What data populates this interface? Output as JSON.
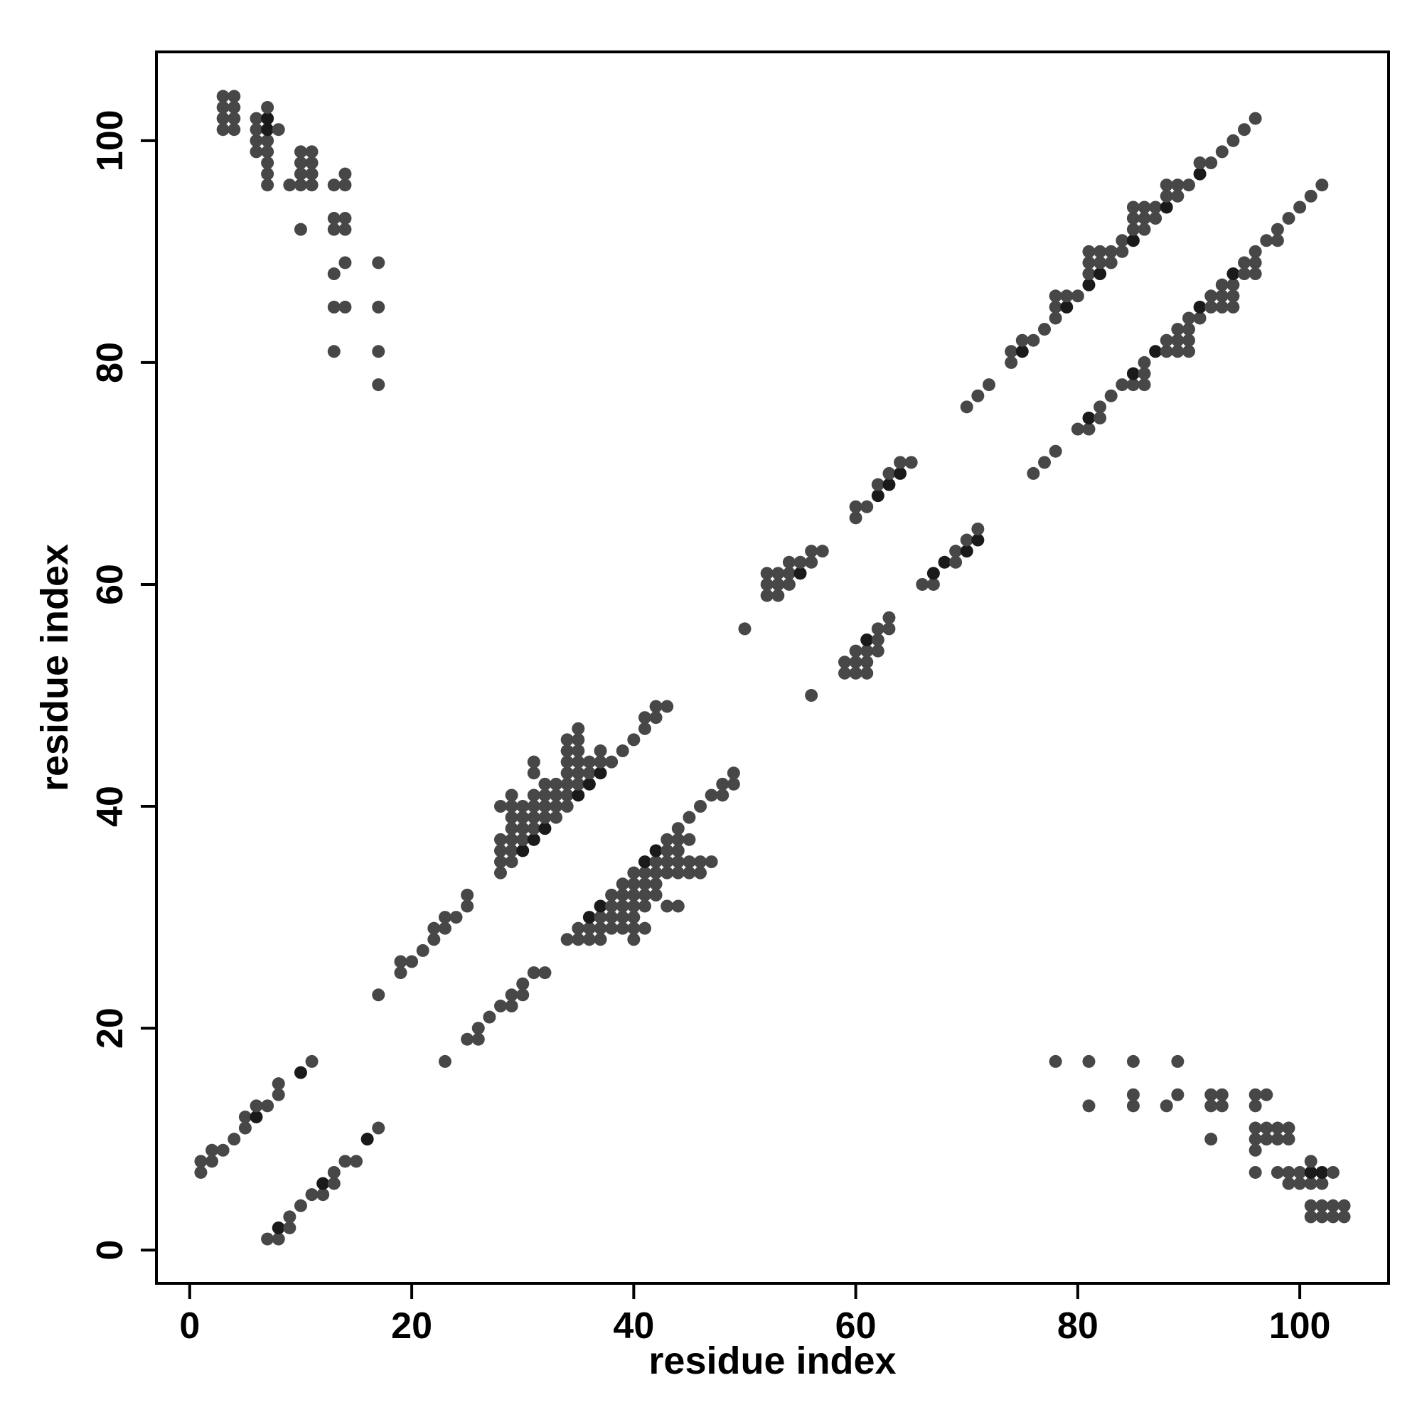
{
  "chart_data": {
    "type": "scatter",
    "title": "",
    "xlabel": "residue index",
    "ylabel": "residue index",
    "xlim": [
      -3,
      108
    ],
    "ylim": [
      -3,
      108
    ],
    "xticks": [
      0,
      20,
      40,
      60,
      80,
      100
    ],
    "yticks": [
      0,
      20,
      40,
      60,
      80,
      100
    ],
    "grid": false,
    "legend": "none",
    "point_color": "#474747",
    "dark_point_color": "#1a1a1a",
    "points": [
      [
        1,
        7
      ],
      [
        1,
        8
      ],
      [
        2,
        8
      ],
      [
        2,
        9
      ],
      [
        3,
        9
      ],
      [
        4,
        10
      ],
      [
        5,
        11
      ],
      [
        5,
        12
      ],
      [
        6,
        12
      ],
      [
        6,
        13
      ],
      [
        7,
        13
      ],
      [
        8,
        14
      ],
      [
        8,
        15
      ],
      [
        10,
        16
      ],
      [
        11,
        17
      ],
      [
        7,
        1
      ],
      [
        8,
        1
      ],
      [
        8,
        2
      ],
      [
        9,
        2
      ],
      [
        9,
        3
      ],
      [
        10,
        4
      ],
      [
        11,
        5
      ],
      [
        12,
        5
      ],
      [
        12,
        6
      ],
      [
        13,
        6
      ],
      [
        13,
        7
      ],
      [
        14,
        8
      ],
      [
        15,
        8
      ],
      [
        16,
        10
      ],
      [
        17,
        11
      ],
      [
        17,
        23
      ],
      [
        19,
        25
      ],
      [
        19,
        26
      ],
      [
        20,
        26
      ],
      [
        21,
        27
      ],
      [
        22,
        28
      ],
      [
        22,
        29
      ],
      [
        23,
        29
      ],
      [
        23,
        30
      ],
      [
        24,
        30
      ],
      [
        25,
        31
      ],
      [
        25,
        32
      ],
      [
        23,
        17
      ],
      [
        25,
        19
      ],
      [
        26,
        19
      ],
      [
        26,
        20
      ],
      [
        27,
        21
      ],
      [
        28,
        22
      ],
      [
        29,
        22
      ],
      [
        29,
        23
      ],
      [
        30,
        23
      ],
      [
        30,
        24
      ],
      [
        31,
        25
      ],
      [
        32,
        25
      ],
      [
        28,
        34
      ],
      [
        28,
        35
      ],
      [
        28,
        36
      ],
      [
        28,
        37
      ],
      [
        28,
        40
      ],
      [
        29,
        35
      ],
      [
        29,
        36
      ],
      [
        29,
        37
      ],
      [
        29,
        38
      ],
      [
        29,
        39
      ],
      [
        29,
        40
      ],
      [
        29,
        41
      ],
      [
        30,
        36
      ],
      [
        30,
        37
      ],
      [
        30,
        38
      ],
      [
        30,
        39
      ],
      [
        30,
        40
      ],
      [
        31,
        37
      ],
      [
        31,
        38
      ],
      [
        31,
        39
      ],
      [
        31,
        40
      ],
      [
        31,
        41
      ],
      [
        31,
        43
      ],
      [
        31,
        44
      ],
      [
        32,
        38
      ],
      [
        32,
        39
      ],
      [
        32,
        40
      ],
      [
        32,
        41
      ],
      [
        32,
        42
      ],
      [
        33,
        39
      ],
      [
        33,
        40
      ],
      [
        33,
        41
      ],
      [
        33,
        42
      ],
      [
        34,
        40
      ],
      [
        34,
        41
      ],
      [
        34,
        42
      ],
      [
        34,
        43
      ],
      [
        34,
        44
      ],
      [
        34,
        45
      ],
      [
        34,
        46
      ],
      [
        35,
        41
      ],
      [
        35,
        42
      ],
      [
        35,
        43
      ],
      [
        35,
        44
      ],
      [
        35,
        45
      ],
      [
        35,
        46
      ],
      [
        35,
        47
      ],
      [
        36,
        42
      ],
      [
        36,
        43
      ],
      [
        36,
        44
      ],
      [
        37,
        43
      ],
      [
        37,
        44
      ],
      [
        37,
        45
      ],
      [
        38,
        44
      ],
      [
        39,
        45
      ],
      [
        40,
        46
      ],
      [
        41,
        47
      ],
      [
        41,
        48
      ],
      [
        42,
        48
      ],
      [
        42,
        49
      ],
      [
        43,
        49
      ],
      [
        34,
        28
      ],
      [
        35,
        28
      ],
      [
        35,
        29
      ],
      [
        36,
        28
      ],
      [
        36,
        29
      ],
      [
        36,
        30
      ],
      [
        37,
        28
      ],
      [
        37,
        29
      ],
      [
        37,
        30
      ],
      [
        37,
        31
      ],
      [
        38,
        29
      ],
      [
        38,
        30
      ],
      [
        38,
        31
      ],
      [
        38,
        32
      ],
      [
        39,
        29
      ],
      [
        39,
        30
      ],
      [
        39,
        31
      ],
      [
        39,
        32
      ],
      [
        39,
        33
      ],
      [
        40,
        28
      ],
      [
        40,
        29
      ],
      [
        40,
        30
      ],
      [
        40,
        31
      ],
      [
        40,
        32
      ],
      [
        40,
        33
      ],
      [
        40,
        34
      ],
      [
        41,
        29
      ],
      [
        41,
        31
      ],
      [
        41,
        32
      ],
      [
        41,
        33
      ],
      [
        41,
        34
      ],
      [
        41,
        35
      ],
      [
        42,
        32
      ],
      [
        42,
        33
      ],
      [
        42,
        34
      ],
      [
        42,
        35
      ],
      [
        42,
        36
      ],
      [
        43,
        31
      ],
      [
        43,
        34
      ],
      [
        43,
        35
      ],
      [
        43,
        36
      ],
      [
        43,
        37
      ],
      [
        44,
        31
      ],
      [
        44,
        34
      ],
      [
        44,
        35
      ],
      [
        44,
        36
      ],
      [
        44,
        37
      ],
      [
        44,
        38
      ],
      [
        45,
        34
      ],
      [
        45,
        35
      ],
      [
        45,
        37
      ],
      [
        45,
        39
      ],
      [
        46,
        34
      ],
      [
        46,
        35
      ],
      [
        46,
        40
      ],
      [
        47,
        35
      ],
      [
        47,
        41
      ],
      [
        48,
        41
      ],
      [
        48,
        42
      ],
      [
        49,
        42
      ],
      [
        49,
        43
      ],
      [
        50,
        56
      ],
      [
        52,
        59
      ],
      [
        52,
        60
      ],
      [
        52,
        61
      ],
      [
        53,
        59
      ],
      [
        53,
        60
      ],
      [
        53,
        61
      ],
      [
        54,
        60
      ],
      [
        54,
        61
      ],
      [
        54,
        62
      ],
      [
        55,
        61
      ],
      [
        55,
        62
      ],
      [
        56,
        62
      ],
      [
        56,
        63
      ],
      [
        57,
        63
      ],
      [
        56,
        50
      ],
      [
        59,
        52
      ],
      [
        59,
        53
      ],
      [
        60,
        52
      ],
      [
        60,
        53
      ],
      [
        60,
        54
      ],
      [
        61,
        52
      ],
      [
        61,
        53
      ],
      [
        61,
        54
      ],
      [
        61,
        55
      ],
      [
        62,
        54
      ],
      [
        62,
        55
      ],
      [
        62,
        56
      ],
      [
        63,
        56
      ],
      [
        63,
        57
      ],
      [
        60,
        66
      ],
      [
        60,
        67
      ],
      [
        61,
        67
      ],
      [
        62,
        68
      ],
      [
        62,
        69
      ],
      [
        63,
        69
      ],
      [
        63,
        70
      ],
      [
        64,
        70
      ],
      [
        64,
        71
      ],
      [
        65,
        71
      ],
      [
        66,
        60
      ],
      [
        67,
        60
      ],
      [
        67,
        61
      ],
      [
        68,
        62
      ],
      [
        69,
        62
      ],
      [
        69,
        63
      ],
      [
        70,
        63
      ],
      [
        70,
        64
      ],
      [
        71,
        64
      ],
      [
        71,
        65
      ],
      [
        70,
        76
      ],
      [
        71,
        77
      ],
      [
        72,
        78
      ],
      [
        74,
        80
      ],
      [
        74,
        81
      ],
      [
        75,
        81
      ],
      [
        75,
        82
      ],
      [
        76,
        82
      ],
      [
        77,
        83
      ],
      [
        78,
        84
      ],
      [
        78,
        85
      ],
      [
        78,
        86
      ],
      [
        79,
        85
      ],
      [
        79,
        86
      ],
      [
        80,
        86
      ],
      [
        81,
        87
      ],
      [
        81,
        88
      ],
      [
        81,
        89
      ],
      [
        81,
        90
      ],
      [
        82,
        88
      ],
      [
        82,
        89
      ],
      [
        82,
        90
      ],
      [
        83,
        89
      ],
      [
        83,
        90
      ],
      [
        84,
        90
      ],
      [
        84,
        91
      ],
      [
        85,
        91
      ],
      [
        85,
        92
      ],
      [
        85,
        93
      ],
      [
        85,
        94
      ],
      [
        86,
        92
      ],
      [
        86,
        93
      ],
      [
        86,
        94
      ],
      [
        87,
        93
      ],
      [
        87,
        94
      ],
      [
        88,
        94
      ],
      [
        88,
        95
      ],
      [
        88,
        96
      ],
      [
        89,
        95
      ],
      [
        89,
        96
      ],
      [
        90,
        96
      ],
      [
        91,
        97
      ],
      [
        91,
        98
      ],
      [
        92,
        98
      ],
      [
        93,
        99
      ],
      [
        94,
        100
      ],
      [
        95,
        101
      ],
      [
        96,
        102
      ],
      [
        76,
        70
      ],
      [
        77,
        71
      ],
      [
        78,
        72
      ],
      [
        80,
        74
      ],
      [
        81,
        74
      ],
      [
        81,
        75
      ],
      [
        82,
        75
      ],
      [
        82,
        76
      ],
      [
        83,
        77
      ],
      [
        84,
        78
      ],
      [
        85,
        78
      ],
      [
        85,
        79
      ],
      [
        86,
        78
      ],
      [
        86,
        79
      ],
      [
        86,
        80
      ],
      [
        87,
        81
      ],
      [
        88,
        81
      ],
      [
        88,
        82
      ],
      [
        89,
        81
      ],
      [
        89,
        82
      ],
      [
        89,
        83
      ],
      [
        90,
        81
      ],
      [
        90,
        82
      ],
      [
        90,
        83
      ],
      [
        90,
        84
      ],
      [
        91,
        84
      ],
      [
        91,
        85
      ],
      [
        92,
        85
      ],
      [
        92,
        86
      ],
      [
        93,
        85
      ],
      [
        93,
        86
      ],
      [
        93,
        87
      ],
      [
        94,
        85
      ],
      [
        94,
        86
      ],
      [
        94,
        87
      ],
      [
        94,
        88
      ],
      [
        95,
        88
      ],
      [
        95,
        89
      ],
      [
        96,
        88
      ],
      [
        96,
        89
      ],
      [
        96,
        90
      ],
      [
        97,
        91
      ],
      [
        98,
        91
      ],
      [
        98,
        92
      ],
      [
        99,
        93
      ],
      [
        100,
        94
      ],
      [
        101,
        95
      ],
      [
        102,
        96
      ],
      [
        3,
        101
      ],
      [
        3,
        102
      ],
      [
        3,
        103
      ],
      [
        3,
        104
      ],
      [
        4,
        101
      ],
      [
        4,
        102
      ],
      [
        4,
        103
      ],
      [
        4,
        104
      ],
      [
        6,
        99
      ],
      [
        6,
        100
      ],
      [
        6,
        101
      ],
      [
        6,
        102
      ],
      [
        7,
        96
      ],
      [
        7,
        97
      ],
      [
        7,
        98
      ],
      [
        7,
        99
      ],
      [
        7,
        100
      ],
      [
        7,
        101
      ],
      [
        7,
        102
      ],
      [
        7,
        103
      ],
      [
        8,
        101
      ],
      [
        9,
        96
      ],
      [
        10,
        92
      ],
      [
        10,
        96
      ],
      [
        10,
        97
      ],
      [
        10,
        98
      ],
      [
        10,
        99
      ],
      [
        11,
        96
      ],
      [
        11,
        97
      ],
      [
        11,
        98
      ],
      [
        11,
        99
      ],
      [
        13,
        81
      ],
      [
        13,
        85
      ],
      [
        13,
        88
      ],
      [
        13,
        92
      ],
      [
        13,
        93
      ],
      [
        13,
        96
      ],
      [
        14,
        85
      ],
      [
        14,
        89
      ],
      [
        14,
        92
      ],
      [
        14,
        93
      ],
      [
        14,
        96
      ],
      [
        14,
        97
      ],
      [
        17,
        78
      ],
      [
        17,
        81
      ],
      [
        17,
        85
      ],
      [
        17,
        89
      ],
      [
        78,
        17
      ],
      [
        81,
        13
      ],
      [
        81,
        17
      ],
      [
        85,
        13
      ],
      [
        85,
        14
      ],
      [
        85,
        17
      ],
      [
        88,
        13
      ],
      [
        89,
        14
      ],
      [
        89,
        17
      ],
      [
        92,
        10
      ],
      [
        92,
        13
      ],
      [
        92,
        14
      ],
      [
        93,
        13
      ],
      [
        93,
        14
      ],
      [
        96,
        7
      ],
      [
        96,
        9
      ],
      [
        96,
        10
      ],
      [
        96,
        11
      ],
      [
        96,
        13
      ],
      [
        96,
        14
      ],
      [
        97,
        10
      ],
      [
        97,
        11
      ],
      [
        97,
        14
      ],
      [
        98,
        7
      ],
      [
        98,
        10
      ],
      [
        98,
        11
      ],
      [
        99,
        6
      ],
      [
        99,
        7
      ],
      [
        99,
        10
      ],
      [
        99,
        11
      ],
      [
        100,
        6
      ],
      [
        100,
        7
      ],
      [
        101,
        3
      ],
      [
        101,
        4
      ],
      [
        101,
        6
      ],
      [
        101,
        7
      ],
      [
        101,
        8
      ],
      [
        102,
        3
      ],
      [
        102,
        4
      ],
      [
        102,
        6
      ],
      [
        102,
        7
      ],
      [
        103,
        3
      ],
      [
        103,
        4
      ],
      [
        103,
        7
      ],
      [
        104,
        3
      ],
      [
        104,
        4
      ]
    ],
    "dark_points": [
      [
        30,
        36
      ],
      [
        31,
        37
      ],
      [
        32,
        38
      ],
      [
        35,
        41
      ],
      [
        36,
        42
      ],
      [
        37,
        43
      ],
      [
        36,
        30
      ],
      [
        37,
        31
      ],
      [
        41,
        35
      ],
      [
        42,
        36
      ],
      [
        55,
        61
      ],
      [
        61,
        55
      ],
      [
        62,
        68
      ],
      [
        63,
        69
      ],
      [
        64,
        70
      ],
      [
        67,
        61
      ],
      [
        68,
        62
      ],
      [
        70,
        63
      ],
      [
        71,
        64
      ],
      [
        7,
        101
      ],
      [
        7,
        102
      ],
      [
        10,
        16
      ],
      [
        6,
        12
      ],
      [
        16,
        10
      ],
      [
        8,
        2
      ],
      [
        12,
        6
      ],
      [
        79,
        85
      ],
      [
        81,
        87
      ],
      [
        82,
        88
      ],
      [
        85,
        91
      ],
      [
        88,
        94
      ],
      [
        91,
        97
      ],
      [
        75,
        81
      ],
      [
        85,
        79
      ],
      [
        87,
        81
      ],
      [
        91,
        85
      ],
      [
        94,
        88
      ],
      [
        81,
        75
      ],
      [
        101,
        7
      ],
      [
        102,
        7
      ]
    ]
  }
}
